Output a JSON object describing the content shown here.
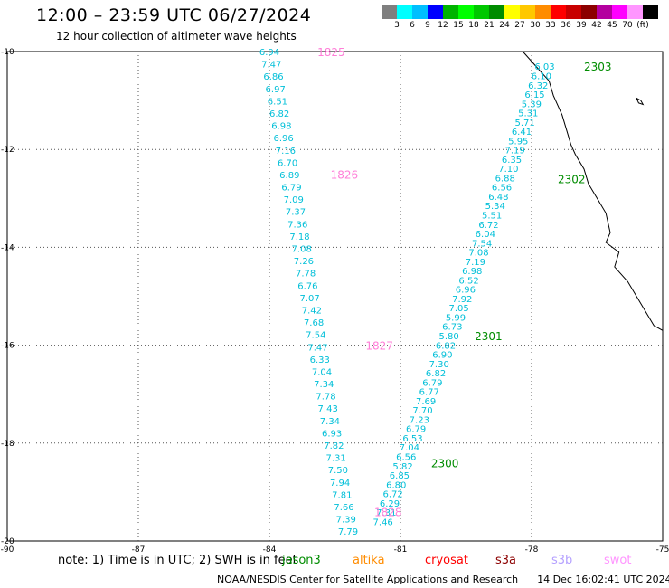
{
  "header": {
    "title": "12:00 – 23:59 UTC 06/27/2024",
    "subtitle": "12 hour collection of altimeter wave heights"
  },
  "colorbar": {
    "colors": [
      "#7f7f7f",
      "#00ffff",
      "#00bfff",
      "#0000ff",
      "#00b400",
      "#00ff00",
      "#00c800",
      "#008c00",
      "#ffff00",
      "#ffc800",
      "#ff8c00",
      "#ff0000",
      "#c80000",
      "#8c0000",
      "#b4009f",
      "#ff00ff",
      "#ff96ff",
      "#000000"
    ],
    "labels": [
      "3",
      "6",
      "9",
      "12",
      "15",
      "18",
      "21",
      "24",
      "27",
      "30",
      "33",
      "36",
      "39",
      "42",
      "45",
      "70",
      "(ft)"
    ]
  },
  "chart_data": {
    "type": "scatter",
    "title": "12:00 – 23:59 UTC 06/27/2024",
    "subtitle": "12 hour collection of altimeter wave heights",
    "xlim": [
      -90,
      -75
    ],
    "ylim": [
      -20,
      -10
    ],
    "x_ticks": [
      "-90",
      "-87",
      "-84",
      "-81",
      "-78",
      "-75"
    ],
    "y_ticks": [
      "-20",
      "-18",
      "-16",
      "-14",
      "-12",
      "-10"
    ],
    "grid": true,
    "tracks": [
      {
        "satellite": "jason3",
        "color": "#00bfd8",
        "start": [
          -84.0,
          -10.0
        ],
        "end": [
          -82.2,
          -19.8
        ],
        "values": [
          "6.94",
          "7.47",
          "6.86",
          "6.97",
          "6.51",
          "6.82",
          "6.98",
          "6.96",
          "7.16",
          "6.70",
          "6.89",
          "6.79",
          "7.09",
          "7.37",
          "7.36",
          "7.18",
          "7.08",
          "7.26",
          "7.78",
          "6.76",
          "7.07",
          "7.42",
          "7.68",
          "7.54",
          "7.47",
          "6.33",
          "7.04",
          "7.34",
          "7.78",
          "7.43",
          "7.34",
          "6.93",
          "7.82",
          "7.31",
          "7.50",
          "7.94",
          "7.81",
          "7.66",
          "7.39",
          "7.79"
        ]
      },
      {
        "satellite": "jason3",
        "color": "#00bfd8",
        "start": [
          -77.7,
          -10.3
        ],
        "end": [
          -81.4,
          -19.6
        ],
        "values": [
          "6.03",
          "6.10",
          "6.32",
          "6.15",
          "5.39",
          "5.31",
          "5.71",
          "6.41",
          "5.95",
          "7.19",
          "6.35",
          "7.10",
          "6.88",
          "6.56",
          "6.48",
          "5.34",
          "5.51",
          "6.72",
          "6.04",
          "7.54",
          "7.08",
          "7.19",
          "6.98",
          "6.52",
          "6.96",
          "7.92",
          "7.05",
          "5.99",
          "6.73",
          "5.80",
          "6.82",
          "6.90",
          "7.30",
          "6.82",
          "6.79",
          "6.77",
          "7.69",
          "7.70",
          "7.23",
          "6.79",
          "6.53",
          "7.04",
          "6.56",
          "5.82",
          "6.85",
          "6.80",
          "6.72",
          "6.29",
          "7.31",
          "7.46"
        ]
      }
    ],
    "pass_labels": [
      {
        "text": "1825",
        "color": "#ff7fd8",
        "x": -82.9,
        "y": -10.0
      },
      {
        "text": "1826",
        "color": "#ff7fd8",
        "x": -82.6,
        "y": -12.5
      },
      {
        "text": "1827",
        "color": "#ff7fd8",
        "x": -81.8,
        "y": -16.0
      },
      {
        "text": "1828",
        "color": "#ff7fd8",
        "x": -81.6,
        "y": -19.4
      },
      {
        "text": "2303",
        "color": "#008c00",
        "x": -76.8,
        "y": -10.3
      },
      {
        "text": "2302",
        "color": "#008c00",
        "x": -77.4,
        "y": -12.6
      },
      {
        "text": "2301",
        "color": "#008c00",
        "x": -79.3,
        "y": -15.8
      },
      {
        "text": "2300",
        "color": "#008c00",
        "x": -80.3,
        "y": -18.4
      }
    ],
    "coastline": [
      [
        -78.2,
        -10.0
      ],
      [
        -77.9,
        -10.3
      ],
      [
        -77.6,
        -10.6
      ],
      [
        -77.5,
        -10.9
      ],
      [
        -77.3,
        -11.3
      ],
      [
        -77.2,
        -11.6
      ],
      [
        -77.1,
        -11.9
      ],
      [
        -77.0,
        -12.1
      ],
      [
        -76.8,
        -12.4
      ],
      [
        -76.7,
        -12.7
      ],
      [
        -76.5,
        -13.0
      ],
      [
        -76.3,
        -13.3
      ],
      [
        -76.2,
        -13.7
      ],
      [
        -76.3,
        -13.9
      ],
      [
        -76.0,
        -14.1
      ],
      [
        -76.1,
        -14.4
      ],
      [
        -75.8,
        -14.7
      ],
      [
        -75.6,
        -15.0
      ],
      [
        -75.4,
        -15.3
      ],
      [
        -75.2,
        -15.6
      ],
      [
        -75.0,
        -15.7
      ]
    ],
    "island": [
      [
        -75.6,
        -10.95
      ],
      [
        -75.5,
        -11.0
      ],
      [
        -75.45,
        -11.08
      ],
      [
        -75.55,
        -11.05
      ]
    ]
  },
  "notes": {
    "note_text": "note:  1) Time is in UTC; 2) SWH is in feet",
    "satellites": [
      {
        "name": "jason3",
        "color": "#008c00"
      },
      {
        "name": "altika",
        "color": "#ff8c00"
      },
      {
        "name": "cryosat",
        "color": "#ff0000"
      },
      {
        "name": "s3a",
        "color": "#8c0000"
      },
      {
        "name": "s3b",
        "color": "#b4a0ff"
      },
      {
        "name": "swot",
        "color": "#ff96ff"
      }
    ]
  },
  "footer": {
    "credit": "NOAA/NESDIS Center for Satellite Applications and Research",
    "timestamp": "14 Dec 16:02:41 UTC 2024"
  }
}
